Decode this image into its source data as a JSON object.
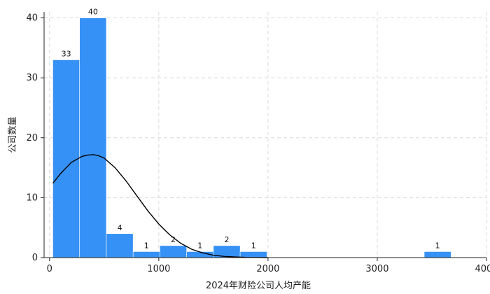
{
  "chart_data": {
    "type": "bar",
    "subtype": "histogram",
    "xlabel": "2024年财险公司人均产能",
    "ylabel": "公司数量",
    "xlim": [
      -50,
      4000
    ],
    "ylim": [
      0,
      41
    ],
    "xticks": [
      0,
      1000,
      2000,
      3000,
      4000
    ],
    "yticks": [
      0,
      10,
      20,
      30,
      40
    ],
    "grid": true,
    "bar_color": "#3591f5",
    "curve_color": "#000000",
    "bins": [
      {
        "x0": 30,
        "x1": 275,
        "count": 33,
        "label": "33"
      },
      {
        "x0": 275,
        "x1": 520,
        "count": 40,
        "label": "40"
      },
      {
        "x0": 520,
        "x1": 765,
        "count": 4,
        "label": "4"
      },
      {
        "x0": 765,
        "x1": 1010,
        "count": 1,
        "label": "1"
      },
      {
        "x0": 1010,
        "x1": 1255,
        "count": 2,
        "label": "2"
      },
      {
        "x0": 1255,
        "x1": 1500,
        "count": 1,
        "label": "1"
      },
      {
        "x0": 1500,
        "x1": 1745,
        "count": 2,
        "label": "2"
      },
      {
        "x0": 1745,
        "x1": 1990,
        "count": 1,
        "label": "1"
      },
      {
        "x0": 3430,
        "x1": 3675,
        "count": 1,
        "label": "1"
      }
    ],
    "density_curve": {
      "x": [
        30,
        100,
        200,
        300,
        350,
        400,
        450,
        500,
        600,
        700,
        800,
        900,
        1000,
        1100,
        1200,
        1300,
        1400,
        1500,
        1600,
        1700,
        1800,
        1900,
        2000
      ],
      "y": [
        12.4,
        14.0,
        15.9,
        16.9,
        17.1,
        17.2,
        17.0,
        16.6,
        15.0,
        12.8,
        10.3,
        7.8,
        5.6,
        3.8,
        2.4,
        1.4,
        0.8,
        0.4,
        0.2,
        0.1,
        0.04,
        0.02,
        0.0
      ]
    }
  }
}
